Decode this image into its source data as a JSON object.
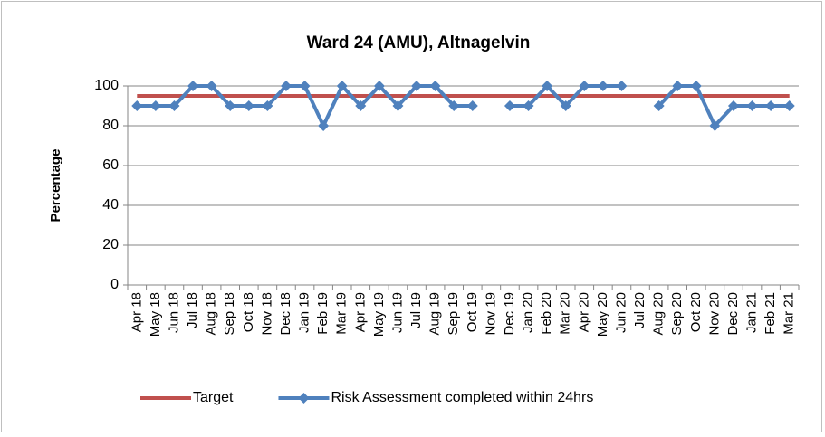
{
  "chart_data": {
    "type": "line",
    "title": "Ward 24 (AMU), Altnagelvin",
    "y_label": "Percentage",
    "categories": [
      "Apr 18",
      "May 18",
      "Jun 18",
      "Jul 18",
      "Aug 18",
      "Sep 18",
      "Oct 18",
      "Nov 18",
      "Dec 18",
      "Jan 19",
      "Feb 19",
      "Mar 19",
      "Apr 19",
      "May 19",
      "Jun 19",
      "Jul 19",
      "Aug 19",
      "Sep 19",
      "Oct 19",
      "Nov 19",
      "Dec 19",
      "Jan 20",
      "Feb 20",
      "Mar 20",
      "Apr 20",
      "May 20",
      "Jun 20",
      "Jul 20",
      "Aug 20",
      "Sep 20",
      "Oct 20",
      "Nov 20",
      "Dec 20",
      "Jan 21",
      "Feb 21",
      "Mar 21"
    ],
    "series": [
      {
        "name": "Target",
        "color": "#c0504d",
        "marker": false,
        "values": [
          95,
          95,
          95,
          95,
          95,
          95,
          95,
          95,
          95,
          95,
          95,
          95,
          95,
          95,
          95,
          95,
          95,
          95,
          95,
          95,
          95,
          95,
          95,
          95,
          95,
          95,
          95,
          95,
          95,
          95,
          95,
          95,
          95,
          95,
          95,
          95
        ]
      },
      {
        "name": "Risk Assessment completed within 24hrs",
        "color": "#4f81bd",
        "marker": true,
        "values": [
          90,
          90,
          90,
          100,
          100,
          90,
          90,
          90,
          100,
          100,
          80,
          100,
          90,
          100,
          90,
          100,
          100,
          90,
          90,
          null,
          90,
          90,
          100,
          90,
          100,
          100,
          100,
          null,
          90,
          100,
          100,
          80,
          90,
          90,
          90,
          90
        ]
      }
    ],
    "ylim": [
      0,
      100
    ],
    "yticks": [
      0,
      20,
      40,
      60,
      80,
      100
    ],
    "grid": true,
    "legend": "bottom"
  }
}
